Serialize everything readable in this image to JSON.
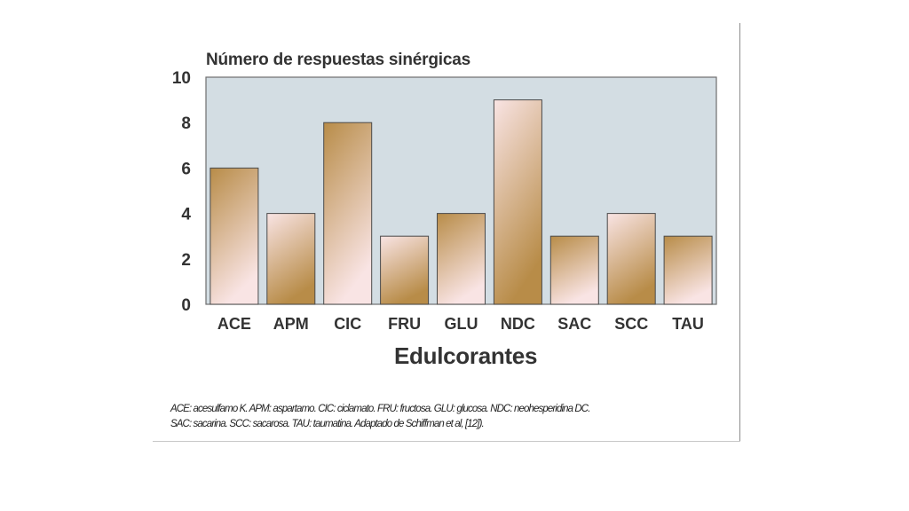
{
  "colors": {
    "plot_background": "#d3dde3",
    "bar_tan": "#b88c48",
    "bar_pink": "#f9e4e4",
    "text": "#333333"
  },
  "chart_data": {
    "type": "bar",
    "title": "Número de respuestas sinérgicas",
    "xlabel": "Edulcorantes",
    "ylabel": "",
    "ylim": [
      0,
      10
    ],
    "yticks": [
      0,
      2,
      4,
      6,
      8,
      10
    ],
    "categories": [
      "ACE",
      "APM",
      "CIC",
      "FRU",
      "GLU",
      "NDC",
      "SAC",
      "SCC",
      "TAU"
    ],
    "values": [
      6,
      4,
      8,
      3,
      4,
      9,
      3,
      4,
      3
    ],
    "bar_fill_style": [
      "tan-top",
      "pink-top",
      "tan-top",
      "pink-top",
      "tan-top",
      "pink-top",
      "tan-top",
      "pink-top",
      "tan-top"
    ],
    "grid": false
  },
  "caption": {
    "line1": "ACE: acesulfamo K. APM: aspartamo. CIC: ciclamato. FRU: fructosa. GLU: glucosa. NDC: neohesperidina DC.",
    "line2": "SAC: sacarina. SCC: sacarosa. TAU: taumatina. Adaptado de Schiffman et al, [12])."
  }
}
